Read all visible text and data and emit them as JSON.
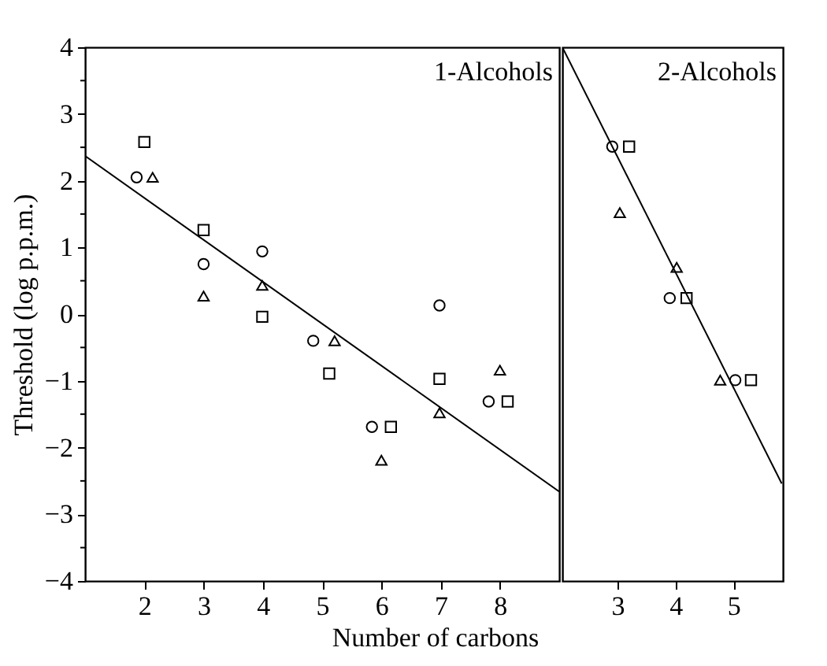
{
  "chart_data": [
    {
      "type": "scatter",
      "xlabel": "Number of carbons",
      "ylabel": "Threshold (log p.p.m.)",
      "annotations": [
        "1-Alcohols"
      ],
      "xlim": [
        1,
        9
      ],
      "xticks": [
        2,
        3,
        4,
        5,
        6,
        7,
        8
      ],
      "ylim": [
        -4,
        4
      ],
      "yticks": [
        -4,
        {
          "value": -3.5,
          "label": null
        },
        -3,
        {
          "value": -2.5,
          "label": null
        },
        -2,
        {
          "value": -1.5,
          "label": null
        },
        -1,
        {
          "value": -0.5,
          "label": null
        },
        0,
        {
          "value": 0.5,
          "label": null
        },
        1,
        {
          "value": 1.5,
          "label": null
        },
        2,
        {
          "value": 2.5,
          "label": null
        },
        3,
        {
          "value": 3.5,
          "label": null
        },
        4
      ],
      "grid": false,
      "series": [
        {
          "marker": "circle",
          "color": "#000000",
          "x": [
            1.87,
            3.0,
            3.99,
            4.85,
            5.84,
            6.98,
            7.81
          ],
          "values": [
            2.05,
            0.75,
            0.94,
            -0.4,
            -1.69,
            0.13,
            -1.31
          ]
        },
        {
          "marker": "square",
          "color": "#000000",
          "x": [
            2.0,
            3.0,
            3.99,
            5.12,
            6.16,
            6.98,
            8.13
          ],
          "values": [
            2.58,
            1.26,
            -0.04,
            -0.89,
            -1.69,
            -0.97,
            -1.31
          ]
        },
        {
          "marker": "triangle",
          "color": "#000000",
          "x": [
            2.14,
            3.0,
            3.99,
            5.21,
            6.0,
            6.98,
            8.0
          ],
          "values": [
            2.05,
            0.27,
            0.43,
            -0.4,
            -2.19,
            -1.48,
            -0.84
          ]
        },
        {
          "type": "line",
          "marker": "none",
          "line_style": "solid",
          "color": "#000000",
          "x": [
            1,
            9
          ],
          "values": [
            2.37,
            -2.66
          ]
        }
      ]
    },
    {
      "type": "scatter",
      "annotations": [
        "2-Alcohols"
      ],
      "xlim": [
        2.05,
        5.85
      ],
      "xticks": [
        3,
        4,
        5
      ],
      "ylim": [
        -4,
        4
      ],
      "tick_labels": "x",
      "grid": false,
      "series": [
        {
          "marker": "circle",
          "color": "#000000",
          "x": [
            2.91,
            3.9,
            5.03
          ],
          "values": [
            2.51,
            0.24,
            -0.99
          ]
        },
        {
          "marker": "square",
          "color": "#000000",
          "x": [
            3.2,
            4.19,
            5.3
          ],
          "values": [
            2.51,
            0.24,
            -0.99
          ]
        },
        {
          "marker": "triangle",
          "color": "#000000",
          "x": [
            3.04,
            4.02,
            4.77
          ],
          "values": [
            1.52,
            0.7,
            -0.99
          ]
        },
        {
          "type": "line",
          "marker": "none",
          "line_style": "solid",
          "color": "#000000",
          "x": [
            2.05,
            5.83
          ],
          "values": [
            4,
            -2.54
          ]
        }
      ]
    }
  ]
}
